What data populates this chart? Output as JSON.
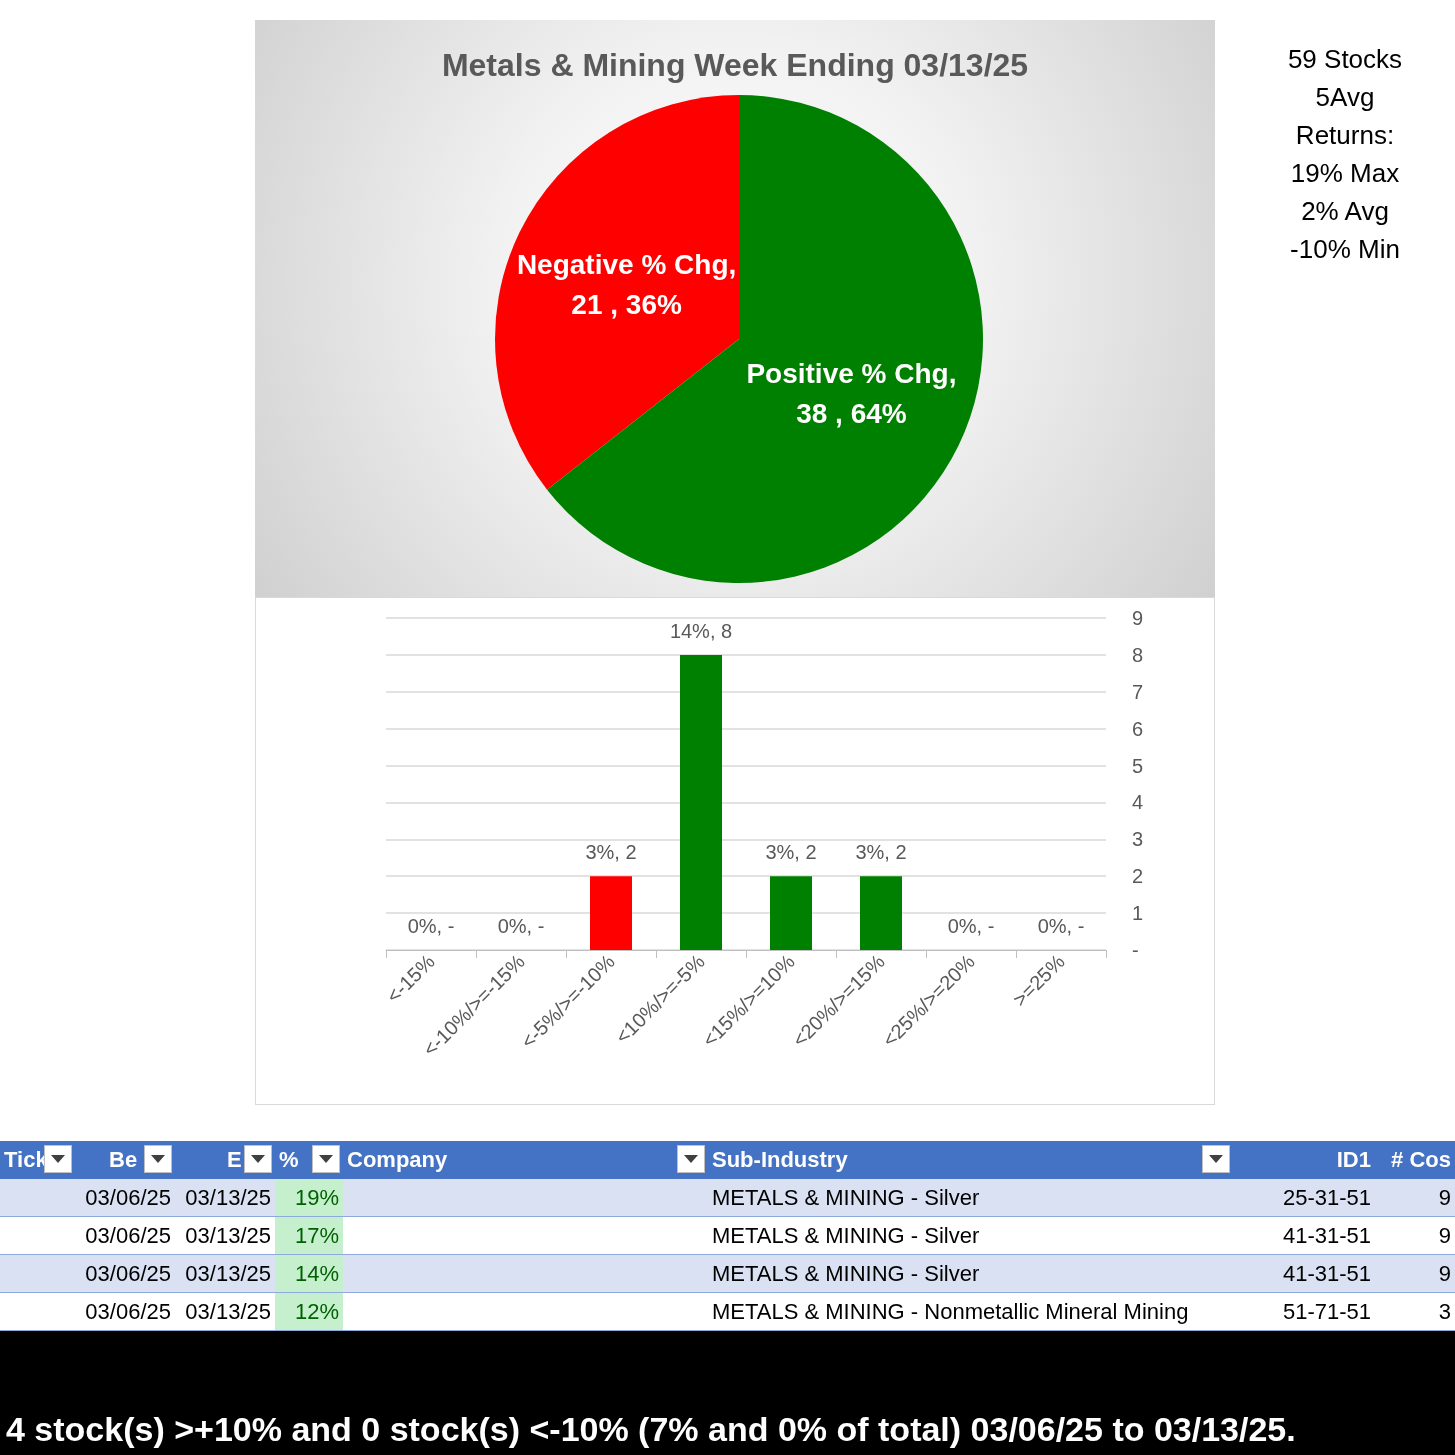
{
  "chart_data": [
    {
      "type": "pie",
      "title": "Metals & Mining Week Ending 03/13/25",
      "categories": [
        "Negative % Chg",
        "Positive % Chg"
      ],
      "values": [
        21,
        38
      ],
      "colors": [
        "#ff0000",
        "#008000"
      ],
      "value_labels": [
        ", 21 , 36%",
        ", 38 , 64%"
      ],
      "annotations": [
        "59 Stocks",
        "5Avg",
        "Returns:",
        "19% Max",
        "2% Avg",
        "-10% Min"
      ]
    },
    {
      "type": "bar",
      "categories": [
        "<-15%",
        "<-10%/>=-15%",
        "<-5%/>=-10%",
        "<10%/>=-5%",
        "<15%/>=10%",
        "<20%/>=15%",
        "<25%/>=20%",
        ">=25%"
      ],
      "values": [
        0,
        0,
        2,
        8,
        2,
        2,
        0,
        0
      ],
      "colors": [
        "#ff0000",
        "#ff0000",
        "#ff0000",
        "#008000",
        "#008000",
        "#008000",
        "#008000",
        "#008000"
      ],
      "value_labels": [
        "0%, -",
        "0%, -",
        "3%, 2",
        "14%, 8",
        "3%, 2",
        "3%, 2",
        "0%, -",
        "0%, -"
      ],
      "ylim": [
        0,
        9
      ],
      "yticks": [
        {
          "value": 0,
          "label": "-"
        },
        1,
        2,
        3,
        4,
        5,
        6,
        7,
        8,
        9
      ],
      "grid": "y"
    },
    {
      "type": "other",
      "categories": [
        "Tick",
        "Be",
        "E",
        "%",
        "Company",
        "Sub-Industry",
        "ID1",
        "# Cos"
      ],
      "cells": [
        [
          null,
          "03/06/25",
          "03/13/25",
          "19%",
          null,
          "METALS & MINING - Silver",
          "25-31-51",
          "9"
        ],
        [
          null,
          "03/06/25",
          "03/13/25",
          "17%",
          null,
          "METALS & MINING - Silver",
          "41-31-51",
          "9"
        ],
        [
          null,
          "03/06/25",
          "03/13/25",
          "14%",
          null,
          "METALS & MINING - Silver",
          "41-31-51",
          "9"
        ],
        [
          null,
          "03/06/25",
          "03/13/25",
          "12%",
          null,
          "METALS & MINING - Nonmetallic Mineral Mining",
          "51-71-51",
          "3"
        ]
      ],
      "annotations": [
        "4 stock(s) >+10% and 0 stock(s) <-10% (7% and 0% of total) 03/06/25 to 03/13/25."
      ]
    }
  ]
}
